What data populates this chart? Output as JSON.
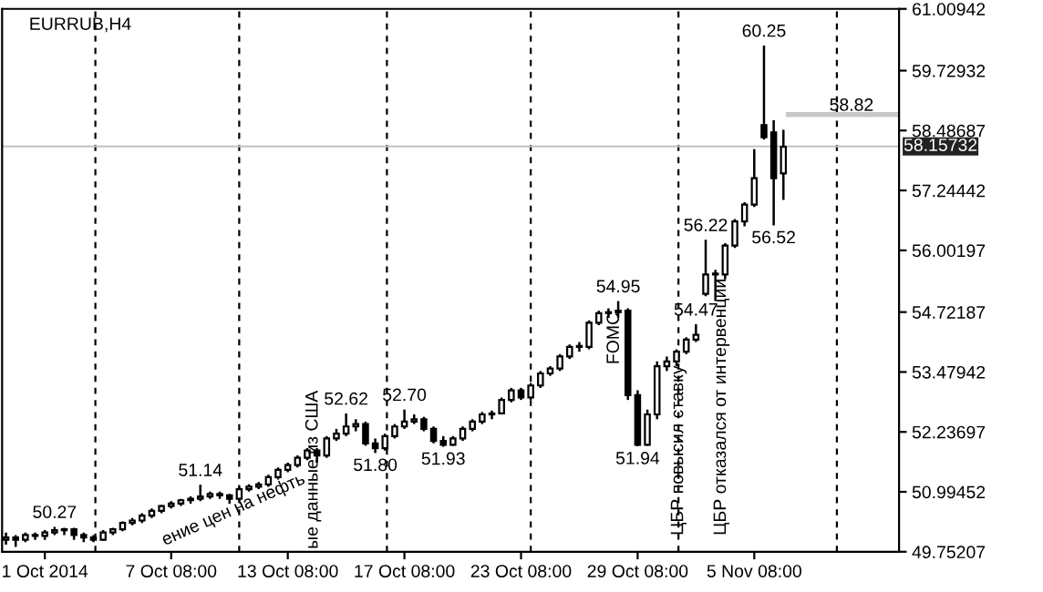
{
  "chart_data": {
    "type": "candlestick",
    "title": "EURRUB,H4",
    "color": "#000000",
    "categories": [
      null,
      null,
      null,
      null,
      "1 Oct 2014",
      null,
      null,
      null,
      null,
      null,
      null,
      null,
      null,
      null,
      null,
      null,
      null,
      "7 Oct 08:00",
      null,
      null,
      null,
      null,
      null,
      null,
      null,
      null,
      null,
      null,
      null,
      "13 Oct 08:00",
      null,
      null,
      null,
      null,
      null,
      null,
      null,
      null,
      null,
      null,
      null,
      "17 Oct 08:00",
      null,
      null,
      null,
      null,
      null,
      null,
      null,
      null,
      null,
      null,
      null,
      "23 Oct 08:00",
      null,
      null,
      null,
      null,
      null,
      null,
      null,
      null,
      null,
      null,
      null,
      "29 Oct 08:00",
      null,
      null,
      null,
      null,
      null,
      null,
      null,
      null,
      null,
      null,
      null,
      "5 Nov 08:00",
      null,
      null,
      null,
      null,
      null,
      null,
      null,
      null,
      null,
      null,
      null,
      null,
      null,
      null
    ],
    "ohlc": [
      [
        50.0,
        50.15,
        49.9,
        50.05
      ],
      [
        50.05,
        50.1,
        49.85,
        50.0
      ],
      [
        50.0,
        50.15,
        49.95,
        50.1
      ],
      [
        50.1,
        50.15,
        50.0,
        50.08
      ],
      [
        50.08,
        50.2,
        50.0,
        50.15
      ],
      [
        50.15,
        50.27,
        50.1,
        50.2
      ],
      [
        50.2,
        50.25,
        50.1,
        50.22
      ],
      [
        50.22,
        50.25,
        50.0,
        50.1
      ],
      [
        50.1,
        50.15,
        49.95,
        50.05
      ],
      [
        50.05,
        50.1,
        49.95,
        50.0
      ],
      [
        50.0,
        50.2,
        49.98,
        50.15
      ],
      [
        50.15,
        50.25,
        50.1,
        50.22
      ],
      [
        50.22,
        50.38,
        50.18,
        50.35
      ],
      [
        50.35,
        50.45,
        50.3,
        50.4
      ],
      [
        50.4,
        50.55,
        50.35,
        50.5
      ],
      [
        50.5,
        50.65,
        50.45,
        50.6
      ],
      [
        50.6,
        50.72,
        50.55,
        50.7
      ],
      [
        50.7,
        50.8,
        50.65,
        50.75
      ],
      [
        50.75,
        50.85,
        50.7,
        50.82
      ],
      [
        50.82,
        50.9,
        50.75,
        50.85
      ],
      [
        50.85,
        51.14,
        50.8,
        50.9
      ],
      [
        50.9,
        51.0,
        50.85,
        50.95
      ],
      [
        50.95,
        51.0,
        50.85,
        50.92
      ],
      [
        50.92,
        50.95,
        50.75,
        50.85
      ],
      [
        50.85,
        51.1,
        50.8,
        51.05
      ],
      [
        51.05,
        51.15,
        51.0,
        51.1
      ],
      [
        51.1,
        51.2,
        51.05,
        51.15
      ],
      [
        51.15,
        51.35,
        51.1,
        51.3
      ],
      [
        51.3,
        51.5,
        51.25,
        51.45
      ],
      [
        51.45,
        51.6,
        51.4,
        51.55
      ],
      [
        51.55,
        51.75,
        51.5,
        51.7
      ],
      [
        51.7,
        51.9,
        51.65,
        51.85
      ],
      [
        51.85,
        51.9,
        51.6,
        51.75
      ],
      [
        51.75,
        52.15,
        51.7,
        52.1
      ],
      [
        52.1,
        52.3,
        52.05,
        52.2
      ],
      [
        52.2,
        52.62,
        52.15,
        52.35
      ],
      [
        52.35,
        52.5,
        52.25,
        52.4
      ],
      [
        52.4,
        52.45,
        51.95,
        52.0
      ],
      [
        52.0,
        52.1,
        51.8,
        51.9
      ],
      [
        51.9,
        52.2,
        51.85,
        52.15
      ],
      [
        52.15,
        52.4,
        52.1,
        52.35
      ],
      [
        52.35,
        52.7,
        52.3,
        52.45
      ],
      [
        52.45,
        52.6,
        52.4,
        52.5
      ],
      [
        52.5,
        52.55,
        52.25,
        52.3
      ],
      [
        52.3,
        52.35,
        52.0,
        52.05
      ],
      [
        52.05,
        52.15,
        51.93,
        51.97
      ],
      [
        51.97,
        52.15,
        51.95,
        52.1
      ],
      [
        52.1,
        52.35,
        52.05,
        52.3
      ],
      [
        52.3,
        52.5,
        52.25,
        52.45
      ],
      [
        52.45,
        52.65,
        52.4,
        52.6
      ],
      [
        52.6,
        52.68,
        52.5,
        52.62
      ],
      [
        52.62,
        52.95,
        52.6,
        52.9
      ],
      [
        52.9,
        53.15,
        52.85,
        53.1
      ],
      [
        53.1,
        53.15,
        52.9,
        52.95
      ],
      [
        52.95,
        53.25,
        52.9,
        53.2
      ],
      [
        53.2,
        53.5,
        53.15,
        53.45
      ],
      [
        53.45,
        53.6,
        53.4,
        53.55
      ],
      [
        53.55,
        53.85,
        53.5,
        53.8
      ],
      [
        53.8,
        54.05,
        53.75,
        54.0
      ],
      [
        54.0,
        54.1,
        53.9,
        54.0
      ],
      [
        54.0,
        54.55,
        53.95,
        54.5
      ],
      [
        54.5,
        54.75,
        54.45,
        54.7
      ],
      [
        54.7,
        54.8,
        54.6,
        54.72
      ],
      [
        54.72,
        54.95,
        54.6,
        54.75
      ],
      [
        54.75,
        54.8,
        52.9,
        53.0
      ],
      [
        53.0,
        53.1,
        51.94,
        51.97
      ],
      [
        51.97,
        52.7,
        51.95,
        52.6
      ],
      [
        52.6,
        53.7,
        52.5,
        53.6
      ],
      [
        53.6,
        53.8,
        53.5,
        53.7
      ],
      [
        53.7,
        53.95,
        53.6,
        53.9
      ],
      [
        53.9,
        54.2,
        53.85,
        54.15
      ],
      [
        54.15,
        54.47,
        54.1,
        54.25
      ],
      [
        55.1,
        56.22,
        55.05,
        55.5
      ],
      [
        55.5,
        55.6,
        54.95,
        55.5
      ],
      [
        55.5,
        56.15,
        55.4,
        56.1
      ],
      [
        56.1,
        56.65,
        56.05,
        56.6
      ],
      [
        56.6,
        57.0,
        56.5,
        56.95
      ],
      [
        56.95,
        58.1,
        56.9,
        57.5
      ],
      [
        58.6,
        60.25,
        58.3,
        58.35
      ],
      [
        58.45,
        58.7,
        56.52,
        57.5
      ],
      [
        57.6,
        58.5,
        57.05,
        58.15
      ],
      null,
      null,
      null,
      null,
      null,
      null,
      null,
      null,
      null,
      null,
      null
    ],
    "ylim": [
      49.75207,
      61.00942
    ],
    "yticks": [
      {
        "value": 49.75207,
        "label": "49.75207"
      },
      {
        "value": 50.99452,
        "label": "50.99452"
      },
      {
        "value": 52.23697,
        "label": "52.23697"
      },
      {
        "value": 53.47942,
        "label": "53.47942"
      },
      {
        "value": 54.72187,
        "label": "54.72187"
      },
      {
        "value": 56.00197,
        "label": "56.00197"
      },
      {
        "value": 57.24442,
        "label": "57.24442"
      },
      {
        "value": 58.48687,
        "label": "58.48687"
      },
      {
        "value": 59.72932,
        "label": "59.72932"
      },
      {
        "value": 61.00942,
        "label": "61.00942"
      }
    ],
    "ref_lines": [
      {
        "axis": "y",
        "value": 58.15732,
        "label": "58.15732",
        "color": "#c0c0c0",
        "line_style": "solid"
      },
      {
        "axis": "y",
        "value": 58.82,
        "label": "58.82",
        "color": "#c8c8c8",
        "line_style": "solid"
      }
    ],
    "annotations": [
      {
        "text": "50.27",
        "y": 50.27
      },
      {
        "text": "51.14",
        "y": 51.14
      },
      {
        "text": "52.62",
        "y": 52.62
      },
      {
        "text": "51.80",
        "y": 51.8
      },
      {
        "text": "52.70",
        "y": 52.7
      },
      {
        "text": "51.93",
        "y": 51.93
      },
      {
        "text": "54.95",
        "y": 54.95
      },
      {
        "text": "51.94",
        "y": 51.94
      },
      {
        "text": "54.47",
        "y": 54.47
      },
      {
        "text": "56.22",
        "y": 56.22
      },
      {
        "text": "60.25",
        "y": 60.25
      },
      {
        "text": "56.52",
        "y": 56.52
      },
      "FOMC",
      "ые данные из США",
      "ение цен на нефть",
      "ЦБР повысил ставку",
      "ЦБР отказался от интервенции"
    ]
  }
}
